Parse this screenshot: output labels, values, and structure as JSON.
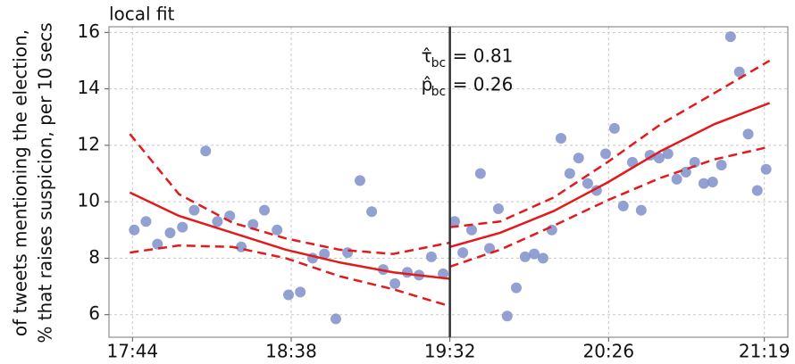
{
  "chart_data": {
    "type": "scatter",
    "title": "local fit",
    "ylabel": [
      "of tweets mentioning the election,",
      "% that raises suspicion, per 10 secs"
    ],
    "xlim": [
      1056,
      1287
    ],
    "ylim": [
      5.2,
      16.2
    ],
    "xticks": [
      {
        "value": 1064,
        "label": "17:44"
      },
      {
        "value": 1118,
        "label": "18:38"
      },
      {
        "value": 1172,
        "label": "19:32"
      },
      {
        "value": 1226,
        "label": "20:26"
      },
      {
        "value": 1279,
        "label": "21:19"
      }
    ],
    "yticks": [
      6,
      8,
      10,
      12,
      14,
      16
    ],
    "grid": true,
    "cutoff": 1172,
    "points": {
      "color": "#7f8fca",
      "x": [
        1064.6,
        1068.6,
        1072.5,
        1076.8,
        1081.0,
        1085.0,
        1088.9,
        1092.9,
        1097.1,
        1101.0,
        1105.0,
        1108.9,
        1113.2,
        1117.1,
        1121.1,
        1125.3,
        1129.3,
        1133.2,
        1137.2,
        1141.4,
        1145.4,
        1149.3,
        1153.3,
        1157.5,
        1161.5,
        1165.7,
        1169.7,
        1173.6,
        1176.4,
        1179.4,
        1182.4,
        1185.5,
        1188.5,
        1191.5,
        1194.6,
        1197.6,
        1200.7,
        1203.7,
        1206.7,
        1209.8,
        1212.8,
        1215.8,
        1218.9,
        1221.9,
        1225.0,
        1228.0,
        1231.0,
        1234.1,
        1237.1,
        1240.1,
        1243.2,
        1246.2,
        1249.2,
        1252.3,
        1255.3,
        1258.4,
        1261.4,
        1264.4,
        1267.5,
        1270.5,
        1273.5,
        1276.6,
        1279.6
      ],
      "y": [
        9.0,
        9.3,
        8.5,
        8.9,
        9.1,
        9.7,
        11.8,
        9.3,
        9.5,
        8.4,
        9.2,
        9.7,
        9.0,
        6.7,
        6.8,
        8.0,
        8.15,
        5.85,
        8.2,
        10.75,
        9.65,
        7.6,
        7.1,
        7.5,
        7.4,
        8.05,
        7.45,
        9.3,
        8.2,
        9.0,
        11.0,
        8.35,
        9.75,
        5.95,
        6.95,
        8.05,
        8.15,
        8.0,
        9.0,
        12.25,
        11.0,
        11.55,
        10.65,
        10.4,
        11.7,
        12.6,
        9.85,
        11.4,
        9.7,
        11.65,
        11.55,
        11.7,
        10.8,
        11.05,
        11.4,
        10.65,
        10.7,
        11.3,
        15.85,
        14.6,
        12.4,
        10.4,
        11.15
      ]
    },
    "fits": [
      {
        "color": "#e31a1c",
        "dashed": false,
        "x": [
          1063.1,
          1079.8,
          1098.0,
          1116.2,
          1134.5,
          1152.7,
          1172
        ],
        "y": [
          10.33,
          9.5,
          8.9,
          8.3,
          7.85,
          7.5,
          7.27
        ]
      },
      {
        "color": "#e31a1c",
        "dashed": true,
        "x": [
          1063.1,
          1079.8,
          1098.0,
          1116.2,
          1134.5,
          1152.7,
          1172
        ],
        "y": [
          12.4,
          10.27,
          9.26,
          8.7,
          8.3,
          8.15,
          8.55
        ]
      },
      {
        "color": "#e31a1c",
        "dashed": true,
        "x": [
          1063.1,
          1079.8,
          1098.0,
          1116.2,
          1134.5,
          1152.7,
          1172
        ],
        "y": [
          8.2,
          8.45,
          8.4,
          8.0,
          7.36,
          6.9,
          6.3
        ]
      },
      {
        "color": "#e31a1c",
        "dashed": false,
        "x": [
          1172,
          1189.1,
          1207.3,
          1225.6,
          1243.8,
          1262.0,
          1280.8
        ],
        "y": [
          8.4,
          8.9,
          9.67,
          10.68,
          11.8,
          12.75,
          13.5
        ]
      },
      {
        "color": "#e31a1c",
        "dashed": true,
        "x": [
          1172,
          1189.1,
          1207.3,
          1225.6,
          1243.8,
          1262.0,
          1280.8
        ],
        "y": [
          9.1,
          9.3,
          10.15,
          11.4,
          12.75,
          13.85,
          15.0
        ]
      },
      {
        "color": "#e31a1c",
        "dashed": true,
        "x": [
          1172,
          1189.1,
          1207.3,
          1225.6,
          1243.8,
          1262.0,
          1280.8
        ],
        "y": [
          7.7,
          8.3,
          9.15,
          10.05,
          10.85,
          11.5,
          11.95
        ]
      }
    ],
    "annotations": [
      {
        "symbol": "τ̂",
        "sub": "bc",
        "text": "= 0.81"
      },
      {
        "symbol": "p̂",
        "sub": "bc",
        "text": "= 0.26"
      }
    ]
  }
}
